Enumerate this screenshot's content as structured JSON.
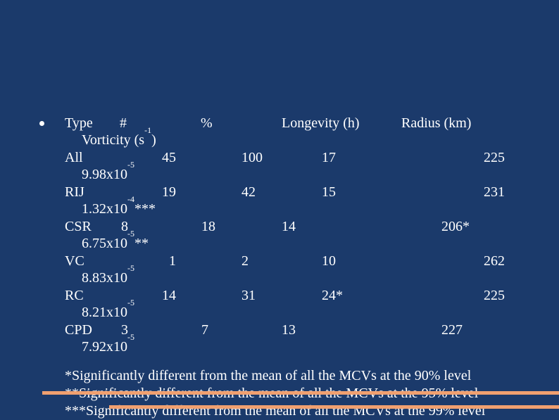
{
  "header": {
    "type": "Type",
    "number": "#",
    "percent": "%",
    "longevity": "Longevity (h)",
    "radius": "Radius (km)",
    "vorticity": "Vorticity (s",
    "vorticity_exp": "-1",
    "vorticity_close": ")"
  },
  "rows": [
    {
      "type": "All",
      "number": "45",
      "percent": "100",
      "longevity": "17",
      "radius": "225",
      "vort_base": "9.98x10",
      "vort_exp": "-5",
      "vort_mark": ""
    },
    {
      "type": "RIJ",
      "number": "19",
      "percent": "42",
      "longevity": "15",
      "radius": "231",
      "vort_base": "1.32x10",
      "vort_exp": "-4",
      "vort_mark": "***"
    },
    {
      "type": "CSR",
      "number": "8",
      "percent": "18",
      "longevity": "14",
      "radius": "206*",
      "vort_base": "6.75x10",
      "vort_exp": "-5",
      "vort_mark": "**"
    },
    {
      "type": "VC",
      "number": "1",
      "percent": "2",
      "longevity": "10",
      "radius": "262",
      "vort_base": "8.83x10",
      "vort_exp": "-5",
      "vort_mark": ""
    },
    {
      "type": "RC",
      "number": "14",
      "percent": "31",
      "longevity": "24*",
      "radius": "225",
      "vort_base": "8.21x10",
      "vort_exp": "-5",
      "vort_mark": ""
    },
    {
      "type": "CPD",
      "number": "3",
      "percent": "7",
      "longevity": "13",
      "radius": "227",
      "vort_base": "7.92x10",
      "vort_exp": "-5",
      "vort_mark": ""
    }
  ],
  "footnotes": [
    "*Significantly different from the mean of all the MCVs at the 90% level",
    "**Significantly different from the mean of all the MCVs at the 95% level",
    "***Significantly different from the mean of all the MCVs at the 99% level"
  ],
  "colors": {
    "background": "#1b3a6b",
    "text": "#ffffff",
    "accent_stripe": "#f0a070"
  }
}
